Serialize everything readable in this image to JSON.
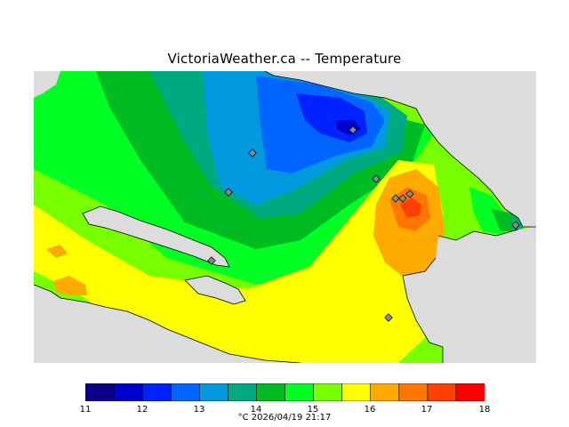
{
  "title": "VictoriaWeather.ca -- Temperature",
  "caption": "°C  2026/04/19 21:17",
  "legend": {
    "ticks": [
      "11",
      "12",
      "13",
      "14",
      "15",
      "16",
      "17",
      "18"
    ],
    "colors": [
      "#0c0088",
      "#0000cc",
      "#0022ff",
      "#0066ff",
      "#0099dd",
      "#00aa80",
      "#00bb22",
      "#00ff22",
      "#77ff00",
      "#ffff00",
      "#ffaa00",
      "#ff7700",
      "#ff3f00",
      "#ff0000"
    ]
  },
  "map": {
    "land_color": "#dcdcdc",
    "stations": [
      "station-1",
      "station-2",
      "station-3",
      "station-4",
      "station-5",
      "station-6",
      "station-7",
      "station-8",
      "station-9",
      "station-10"
    ]
  }
}
